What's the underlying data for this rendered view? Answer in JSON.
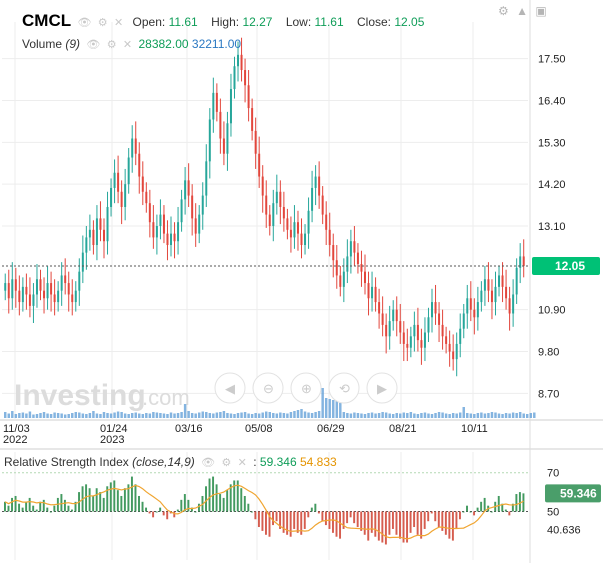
{
  "header": {
    "symbol": "CMCL",
    "open_label": "Open:",
    "open": "11.61",
    "high_label": "High:",
    "high": "12.27",
    "low_label": "Low:",
    "low": "11.61",
    "close_label": "Close:",
    "close": "12.05",
    "volume_label": "Volume",
    "volume_param": "(9)",
    "volume_value": "28382.00",
    "volume_ma": "32211.00"
  },
  "rsi_header": {
    "label": "Relative Strength Index",
    "params": "(close,14,9)",
    "value": "59.346",
    "ma_value": "54.833"
  },
  "watermark": "Investing",
  "watermark_suffix": ".com",
  "icons": [
    "eye-icon",
    "gear-icon",
    "close-icon",
    "settings-icon",
    "up-arrow-icon",
    "maximize-icon"
  ],
  "colors": {
    "up": "#26a69a",
    "down": "#e2463c",
    "price_line": "#00c176",
    "rsi_ma": "#f0a531",
    "volume": "#5b9bd5"
  },
  "chart_data": [
    {
      "type": "candlestick",
      "x_ticks": [
        "11/03",
        "01/24",
        "03/16",
        "05/08",
        "06/29",
        "08/21",
        "10/11"
      ],
      "x_tick_years": [
        "2022",
        "2023",
        "",
        "",
        "",
        "",
        ""
      ],
      "y_ticks": [
        "17.50",
        "16.40",
        "15.30",
        "14.20",
        "13.10",
        "12.05",
        "10.90",
        "9.80",
        "8.70"
      ],
      "ylim": [
        8.0,
        18.2
      ],
      "last_price": 12.05,
      "series_close": [
        11.6,
        11.2,
        11.7,
        11.4,
        11.1,
        11.5,
        11.3,
        11.0,
        11.3,
        11.7,
        11.4,
        11.2,
        11.6,
        11.3,
        11.1,
        11.4,
        11.8,
        11.6,
        11.3,
        11.1,
        11.4,
        11.9,
        12.4,
        12.8,
        13.0,
        12.6,
        13.3,
        13.0,
        12.7,
        13.6,
        14.1,
        14.5,
        14.0,
        13.6,
        14.2,
        14.9,
        15.4,
        15.0,
        14.4,
        14.0,
        13.7,
        13.2,
        12.8,
        13.1,
        13.4,
        12.9,
        12.6,
        12.9,
        12.7,
        13.2,
        13.8,
        14.3,
        13.9,
        13.3,
        12.9,
        13.4,
        13.9,
        14.8,
        15.9,
        16.6,
        16.1,
        15.4,
        15.0,
        15.8,
        16.7,
        17.3,
        17.6,
        17.2,
        16.8,
        16.2,
        15.6,
        15.0,
        14.4,
        13.9,
        13.4,
        13.1,
        13.7,
        14.0,
        13.6,
        13.3,
        13.0,
        12.8,
        13.2,
        12.9,
        12.6,
        12.9,
        13.5,
        14.1,
        14.4,
        13.9,
        13.4,
        13.0,
        12.6,
        12.2,
        11.8,
        11.5,
        11.9,
        12.3,
        12.7,
        12.4,
        12.1,
        11.9,
        11.6,
        11.2,
        11.5,
        11.1,
        10.8,
        10.5,
        10.2,
        10.6,
        10.9,
        10.6,
        10.3,
        10.0,
        9.9,
        10.2,
        10.5,
        10.1,
        9.9,
        10.3,
        10.7,
        11.1,
        10.8,
        10.5,
        10.2,
        10.0,
        9.8,
        9.6,
        10.0,
        10.4,
        10.8,
        11.2,
        10.9,
        10.7,
        11.1,
        11.4,
        11.7,
        11.4,
        11.1,
        11.5,
        11.8,
        11.5,
        11.2,
        10.8,
        11.3,
        12.0,
        12.3,
        12.05
      ]
    },
    {
      "type": "bar",
      "name": "Volume",
      "values": [
        12,
        9,
        14,
        8,
        10,
        11,
        9,
        13,
        7,
        8,
        10,
        12,
        9,
        8,
        11,
        10,
        9,
        7,
        8,
        10,
        12,
        11,
        9,
        8,
        10,
        14,
        9,
        8,
        12,
        10,
        9,
        11,
        13,
        12,
        9,
        8,
        10,
        11,
        9,
        8,
        10,
        9,
        12,
        11,
        10,
        9,
        8,
        11,
        9,
        10,
        12,
        28,
        14,
        10,
        9,
        11,
        13,
        12,
        10,
        9,
        11,
        12,
        14,
        10,
        9,
        8,
        10,
        11,
        12,
        9,
        8,
        10,
        9,
        11,
        13,
        12,
        10,
        9,
        11,
        10,
        9,
        12,
        14,
        16,
        18,
        13,
        11,
        10,
        12,
        14,
        60,
        40,
        38,
        36,
        34,
        30,
        12,
        10,
        9,
        11,
        10,
        9,
        8,
        10,
        11,
        9,
        10,
        12,
        11,
        9,
        8,
        10,
        9,
        11,
        10,
        12,
        9,
        8,
        10,
        11,
        9,
        8,
        10,
        12,
        11,
        9,
        8,
        10,
        9,
        11,
        22,
        10,
        9,
        8,
        10,
        11,
        9,
        10,
        12,
        11,
        9,
        8,
        10,
        9,
        11,
        10,
        12,
        9,
        8,
        10,
        11
      ]
    },
    {
      "type": "line",
      "name": "Relative Strength Index",
      "y_ticks": [
        "70",
        "50",
        "40.636"
      ],
      "ylim": [
        25,
        75
      ],
      "levels": [
        70,
        50
      ],
      "last_value": "59.346",
      "values": [
        55,
        53,
        57,
        58,
        54,
        52,
        55,
        57,
        53,
        51,
        55,
        56,
        52,
        50,
        53,
        57,
        59,
        56,
        53,
        51,
        55,
        60,
        63,
        64,
        62,
        58,
        62,
        60,
        57,
        63,
        65,
        66,
        61,
        58,
        62,
        64,
        68,
        64,
        58,
        55,
        52,
        49,
        47,
        50,
        52,
        48,
        46,
        49,
        47,
        51,
        56,
        59,
        56,
        52,
        50,
        54,
        58,
        63,
        67,
        68,
        64,
        59,
        57,
        61,
        64,
        66,
        66,
        62,
        58,
        54,
        50,
        46,
        42,
        40,
        38,
        37,
        43,
        45,
        41,
        39,
        38,
        37,
        41,
        39,
        38,
        41,
        47,
        52,
        54,
        49,
        45,
        43,
        41,
        39,
        37,
        36,
        41,
        44,
        47,
        44,
        42,
        40,
        38,
        35,
        39,
        37,
        35,
        34,
        33,
        38,
        41,
        38,
        36,
        34,
        34,
        39,
        42,
        38,
        36,
        41,
        45,
        49,
        45,
        42,
        40,
        38,
        36,
        35,
        41,
        46,
        50,
        53,
        50,
        48,
        52,
        55,
        57,
        53,
        50,
        55,
        58,
        54,
        51,
        48,
        54,
        59,
        60,
        59.346
      ]
    }
  ]
}
